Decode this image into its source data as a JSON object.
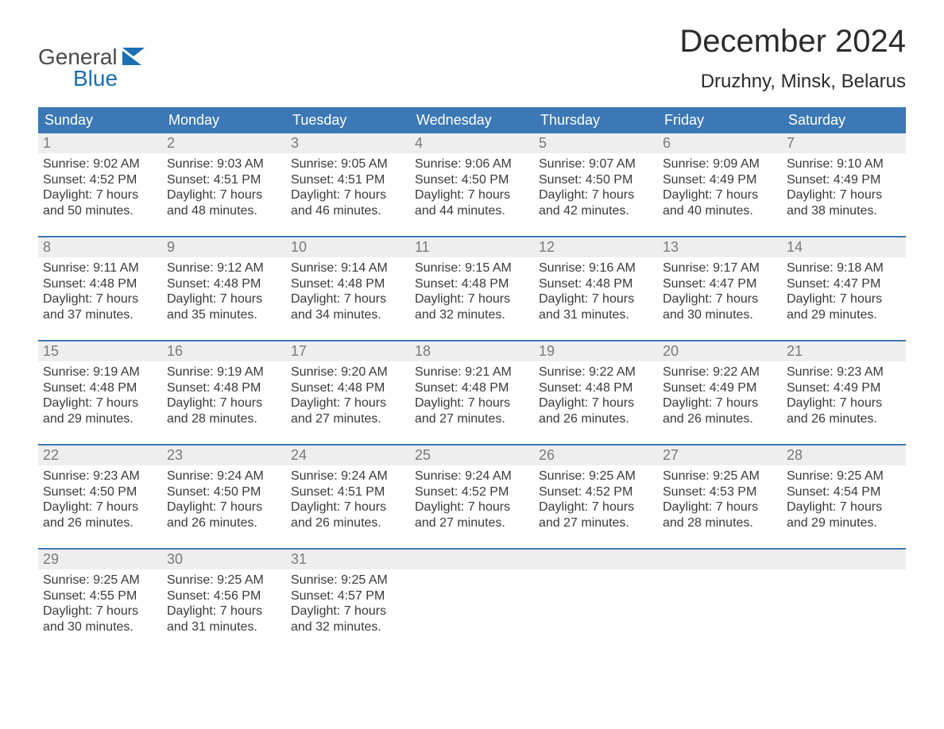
{
  "logo": {
    "word1": "General",
    "word2": "Blue"
  },
  "title": "December 2024",
  "location": "Druzhny, Minsk, Belarus",
  "colors": {
    "header_bg": "#3b78b5",
    "header_text": "#ffffff",
    "daynum_bg": "#eeeeee",
    "daynum_text": "#7a7a7a",
    "body_text": "#3a3a3a",
    "rule": "#3b78b5",
    "page_bg": "#ffffff",
    "logo_gray": "#4a4a4a",
    "logo_blue": "#1a6fb5"
  },
  "typography": {
    "title_size_pt": 40,
    "location_size_pt": 24,
    "header_size_pt": 18,
    "daynum_size_pt": 18,
    "body_size_pt": 16,
    "logo_size_pt": 28
  },
  "columns": [
    "Sunday",
    "Monday",
    "Tuesday",
    "Wednesday",
    "Thursday",
    "Friday",
    "Saturday"
  ],
  "weeks": [
    [
      {
        "n": "1",
        "sunrise": "Sunrise: 9:02 AM",
        "sunset": "Sunset: 4:52 PM",
        "day": "Daylight: 7 hours and 50 minutes."
      },
      {
        "n": "2",
        "sunrise": "Sunrise: 9:03 AM",
        "sunset": "Sunset: 4:51 PM",
        "day": "Daylight: 7 hours and 48 minutes."
      },
      {
        "n": "3",
        "sunrise": "Sunrise: 9:05 AM",
        "sunset": "Sunset: 4:51 PM",
        "day": "Daylight: 7 hours and 46 minutes."
      },
      {
        "n": "4",
        "sunrise": "Sunrise: 9:06 AM",
        "sunset": "Sunset: 4:50 PM",
        "day": "Daylight: 7 hours and 44 minutes."
      },
      {
        "n": "5",
        "sunrise": "Sunrise: 9:07 AM",
        "sunset": "Sunset: 4:50 PM",
        "day": "Daylight: 7 hours and 42 minutes."
      },
      {
        "n": "6",
        "sunrise": "Sunrise: 9:09 AM",
        "sunset": "Sunset: 4:49 PM",
        "day": "Daylight: 7 hours and 40 minutes."
      },
      {
        "n": "7",
        "sunrise": "Sunrise: 9:10 AM",
        "sunset": "Sunset: 4:49 PM",
        "day": "Daylight: 7 hours and 38 minutes."
      }
    ],
    [
      {
        "n": "8",
        "sunrise": "Sunrise: 9:11 AM",
        "sunset": "Sunset: 4:48 PM",
        "day": "Daylight: 7 hours and 37 minutes."
      },
      {
        "n": "9",
        "sunrise": "Sunrise: 9:12 AM",
        "sunset": "Sunset: 4:48 PM",
        "day": "Daylight: 7 hours and 35 minutes."
      },
      {
        "n": "10",
        "sunrise": "Sunrise: 9:14 AM",
        "sunset": "Sunset: 4:48 PM",
        "day": "Daylight: 7 hours and 34 minutes."
      },
      {
        "n": "11",
        "sunrise": "Sunrise: 9:15 AM",
        "sunset": "Sunset: 4:48 PM",
        "day": "Daylight: 7 hours and 32 minutes."
      },
      {
        "n": "12",
        "sunrise": "Sunrise: 9:16 AM",
        "sunset": "Sunset: 4:48 PM",
        "day": "Daylight: 7 hours and 31 minutes."
      },
      {
        "n": "13",
        "sunrise": "Sunrise: 9:17 AM",
        "sunset": "Sunset: 4:47 PM",
        "day": "Daylight: 7 hours and 30 minutes."
      },
      {
        "n": "14",
        "sunrise": "Sunrise: 9:18 AM",
        "sunset": "Sunset: 4:47 PM",
        "day": "Daylight: 7 hours and 29 minutes."
      }
    ],
    [
      {
        "n": "15",
        "sunrise": "Sunrise: 9:19 AM",
        "sunset": "Sunset: 4:48 PM",
        "day": "Daylight: 7 hours and 29 minutes."
      },
      {
        "n": "16",
        "sunrise": "Sunrise: 9:19 AM",
        "sunset": "Sunset: 4:48 PM",
        "day": "Daylight: 7 hours and 28 minutes."
      },
      {
        "n": "17",
        "sunrise": "Sunrise: 9:20 AM",
        "sunset": "Sunset: 4:48 PM",
        "day": "Daylight: 7 hours and 27 minutes."
      },
      {
        "n": "18",
        "sunrise": "Sunrise: 9:21 AM",
        "sunset": "Sunset: 4:48 PM",
        "day": "Daylight: 7 hours and 27 minutes."
      },
      {
        "n": "19",
        "sunrise": "Sunrise: 9:22 AM",
        "sunset": "Sunset: 4:48 PM",
        "day": "Daylight: 7 hours and 26 minutes."
      },
      {
        "n": "20",
        "sunrise": "Sunrise: 9:22 AM",
        "sunset": "Sunset: 4:49 PM",
        "day": "Daylight: 7 hours and 26 minutes."
      },
      {
        "n": "21",
        "sunrise": "Sunrise: 9:23 AM",
        "sunset": "Sunset: 4:49 PM",
        "day": "Daylight: 7 hours and 26 minutes."
      }
    ],
    [
      {
        "n": "22",
        "sunrise": "Sunrise: 9:23 AM",
        "sunset": "Sunset: 4:50 PM",
        "day": "Daylight: 7 hours and 26 minutes."
      },
      {
        "n": "23",
        "sunrise": "Sunrise: 9:24 AM",
        "sunset": "Sunset: 4:50 PM",
        "day": "Daylight: 7 hours and 26 minutes."
      },
      {
        "n": "24",
        "sunrise": "Sunrise: 9:24 AM",
        "sunset": "Sunset: 4:51 PM",
        "day": "Daylight: 7 hours and 26 minutes."
      },
      {
        "n": "25",
        "sunrise": "Sunrise: 9:24 AM",
        "sunset": "Sunset: 4:52 PM",
        "day": "Daylight: 7 hours and 27 minutes."
      },
      {
        "n": "26",
        "sunrise": "Sunrise: 9:25 AM",
        "sunset": "Sunset: 4:52 PM",
        "day": "Daylight: 7 hours and 27 minutes."
      },
      {
        "n": "27",
        "sunrise": "Sunrise: 9:25 AM",
        "sunset": "Sunset: 4:53 PM",
        "day": "Daylight: 7 hours and 28 minutes."
      },
      {
        "n": "28",
        "sunrise": "Sunrise: 9:25 AM",
        "sunset": "Sunset: 4:54 PM",
        "day": "Daylight: 7 hours and 29 minutes."
      }
    ],
    [
      {
        "n": "29",
        "sunrise": "Sunrise: 9:25 AM",
        "sunset": "Sunset: 4:55 PM",
        "day": "Daylight: 7 hours and 30 minutes."
      },
      {
        "n": "30",
        "sunrise": "Sunrise: 9:25 AM",
        "sunset": "Sunset: 4:56 PM",
        "day": "Daylight: 7 hours and 31 minutes."
      },
      {
        "n": "31",
        "sunrise": "Sunrise: 9:25 AM",
        "sunset": "Sunset: 4:57 PM",
        "day": "Daylight: 7 hours and 32 minutes."
      },
      null,
      null,
      null,
      null
    ]
  ]
}
